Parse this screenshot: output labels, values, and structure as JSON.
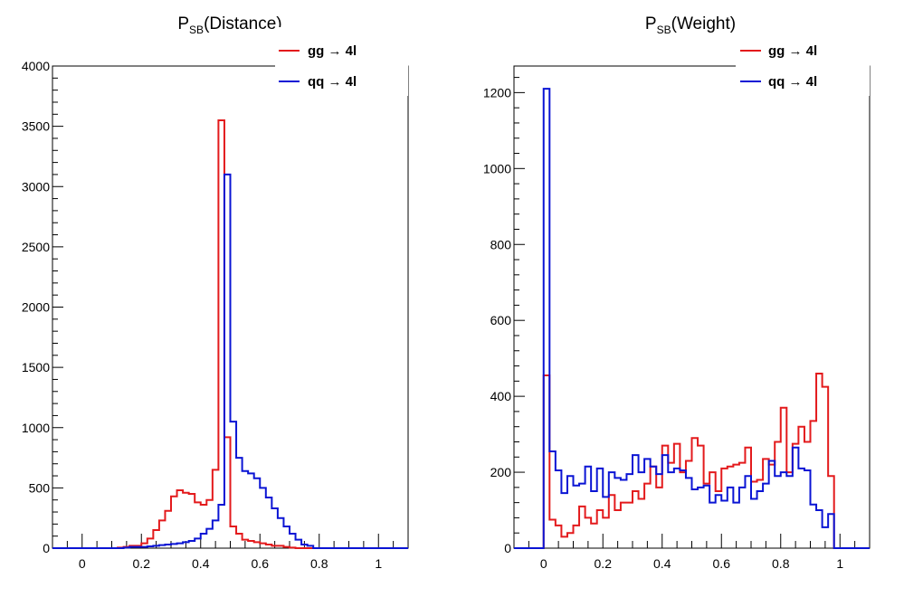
{
  "chart_data": [
    {
      "type": "line",
      "style": "step-histogram",
      "title_main": "P",
      "title_sub": "SB",
      "title_tail": "(Distance)",
      "xlabel": "",
      "ylabel": "",
      "xlim": [
        -0.1,
        1.1
      ],
      "ylim": [
        0,
        4000
      ],
      "xticks": [
        0,
        0.2,
        0.4,
        0.6,
        0.8,
        1
      ],
      "xtick_labels": [
        "0",
        "0.2",
        "0.4",
        "0.6",
        "0.8",
        "1"
      ],
      "yticks": [
        0,
        500,
        1000,
        1500,
        2000,
        2500,
        3000,
        3500,
        4000
      ],
      "ytick_labels": [
        "0",
        "500",
        "1000",
        "1500",
        "2000",
        "2500",
        "3000",
        "3500",
        "4000"
      ],
      "grid": false,
      "legend_position": "top-right",
      "bin_edges": [
        -0.1,
        -0.08,
        -0.06,
        -0.04,
        -0.02,
        0.0,
        0.02,
        0.04,
        0.06,
        0.08,
        0.1,
        0.12,
        0.14,
        0.16,
        0.18,
        0.2,
        0.22,
        0.24,
        0.26,
        0.28,
        0.3,
        0.32,
        0.34,
        0.36,
        0.38,
        0.4,
        0.42,
        0.44,
        0.46,
        0.48,
        0.5,
        0.52,
        0.54,
        0.56,
        0.58,
        0.6,
        0.62,
        0.64,
        0.66,
        0.68,
        0.7,
        0.72,
        0.74,
        0.76,
        0.78,
        0.8,
        0.82,
        0.84,
        0.86,
        0.88,
        0.9,
        0.92,
        0.94,
        0.96,
        0.98,
        1.0,
        1.02,
        1.04,
        1.06,
        1.08,
        1.1
      ],
      "series": [
        {
          "name": "gg → 4l",
          "color": "#e31a1c",
          "values": [
            0,
            0,
            0,
            0,
            0,
            0,
            0,
            0,
            0,
            0,
            0,
            5,
            10,
            20,
            20,
            40,
            80,
            150,
            230,
            310,
            430,
            480,
            460,
            450,
            380,
            360,
            400,
            650,
            3550,
            920,
            180,
            120,
            70,
            60,
            50,
            40,
            30,
            20,
            20,
            10,
            5,
            0,
            0,
            0,
            0,
            0,
            0,
            0,
            0,
            0,
            0,
            0,
            0,
            0,
            0,
            0,
            0,
            0,
            0,
            0
          ]
        },
        {
          "name": "qq → 4l",
          "color": "#0a14d4",
          "values": [
            0,
            0,
            0,
            0,
            0,
            0,
            0,
            0,
            0,
            0,
            0,
            0,
            5,
            10,
            10,
            10,
            15,
            20,
            25,
            30,
            35,
            40,
            50,
            60,
            80,
            120,
            160,
            230,
            360,
            3100,
            1050,
            750,
            640,
            620,
            580,
            500,
            420,
            330,
            250,
            180,
            120,
            70,
            30,
            20,
            0,
            0,
            0,
            0,
            0,
            0,
            0,
            0,
            0,
            0,
            0,
            0,
            0,
            0,
            0,
            0
          ]
        }
      ]
    },
    {
      "type": "line",
      "style": "step-histogram",
      "title_main": "P",
      "title_sub": "SB",
      "title_tail": "(Weight)",
      "xlabel": "",
      "ylabel": "",
      "xlim": [
        -0.1,
        1.1
      ],
      "ylim": [
        0,
        1270
      ],
      "xticks": [
        0,
        0.2,
        0.4,
        0.6,
        0.8,
        1
      ],
      "xtick_labels": [
        "0",
        "0.2",
        "0.4",
        "0.6",
        "0.8",
        "1"
      ],
      "yticks": [
        0,
        200,
        400,
        600,
        800,
        1000,
        1200
      ],
      "ytick_labels": [
        "0",
        "200",
        "400",
        "600",
        "800",
        "1000",
        "1200"
      ],
      "grid": false,
      "legend_position": "top-right",
      "bin_edges": [
        -0.1,
        -0.08,
        -0.06,
        -0.04,
        -0.02,
        0.0,
        0.02,
        0.04,
        0.06,
        0.08,
        0.1,
        0.12,
        0.14,
        0.16,
        0.18,
        0.2,
        0.22,
        0.24,
        0.26,
        0.28,
        0.3,
        0.32,
        0.34,
        0.36,
        0.38,
        0.4,
        0.42,
        0.44,
        0.46,
        0.48,
        0.5,
        0.52,
        0.54,
        0.56,
        0.58,
        0.6,
        0.62,
        0.64,
        0.66,
        0.68,
        0.7,
        0.72,
        0.74,
        0.76,
        0.78,
        0.8,
        0.82,
        0.84,
        0.86,
        0.88,
        0.9,
        0.92,
        0.94,
        0.96,
        0.98,
        1.0,
        1.02,
        1.04,
        1.06,
        1.08,
        1.1
      ],
      "series": [
        {
          "name": "gg → 4l",
          "color": "#e31a1c",
          "values": [
            0,
            0,
            0,
            0,
            0,
            455,
            75,
            60,
            30,
            40,
            60,
            110,
            80,
            65,
            100,
            80,
            140,
            100,
            120,
            120,
            150,
            130,
            170,
            215,
            160,
            270,
            225,
            275,
            200,
            230,
            290,
            270,
            170,
            200,
            150,
            210,
            215,
            220,
            225,
            265,
            175,
            180,
            235,
            220,
            280,
            370,
            200,
            275,
            320,
            280,
            335,
            460,
            425,
            190,
            0,
            0,
            0,
            0,
            0,
            0
          ]
        },
        {
          "name": "qq → 4l",
          "color": "#0a14d4",
          "values": [
            0,
            0,
            0,
            0,
            0,
            1210,
            255,
            205,
            145,
            190,
            165,
            170,
            215,
            150,
            210,
            135,
            200,
            185,
            180,
            195,
            245,
            200,
            235,
            215,
            195,
            245,
            200,
            210,
            205,
            185,
            155,
            160,
            165,
            120,
            140,
            125,
            160,
            120,
            160,
            190,
            130,
            150,
            170,
            230,
            190,
            200,
            190,
            265,
            210,
            205,
            115,
            100,
            55,
            90,
            0,
            0,
            0,
            0,
            0,
            0
          ]
        }
      ]
    }
  ]
}
